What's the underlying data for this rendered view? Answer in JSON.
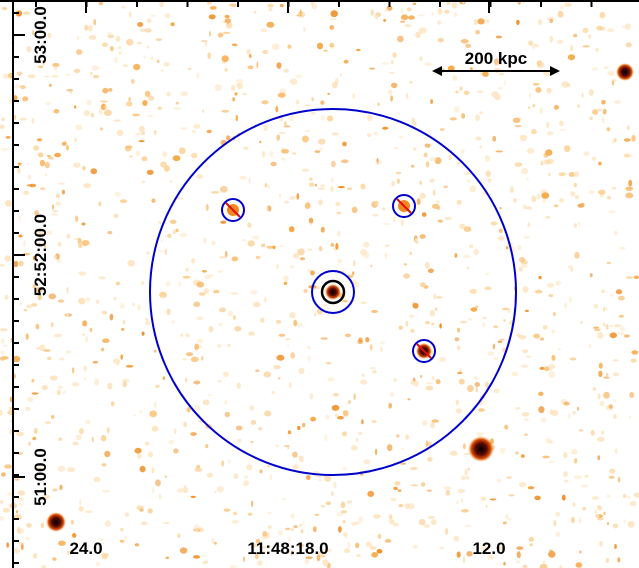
{
  "axes": {
    "x_ticks": [
      "24.0",
      "11:48:18.0",
      "12.0"
    ],
    "y_ticks": [
      "53:00.0",
      "52:52:00.0",
      "51:00.0"
    ]
  },
  "scale_bar": {
    "label": "200 kpc"
  }
}
